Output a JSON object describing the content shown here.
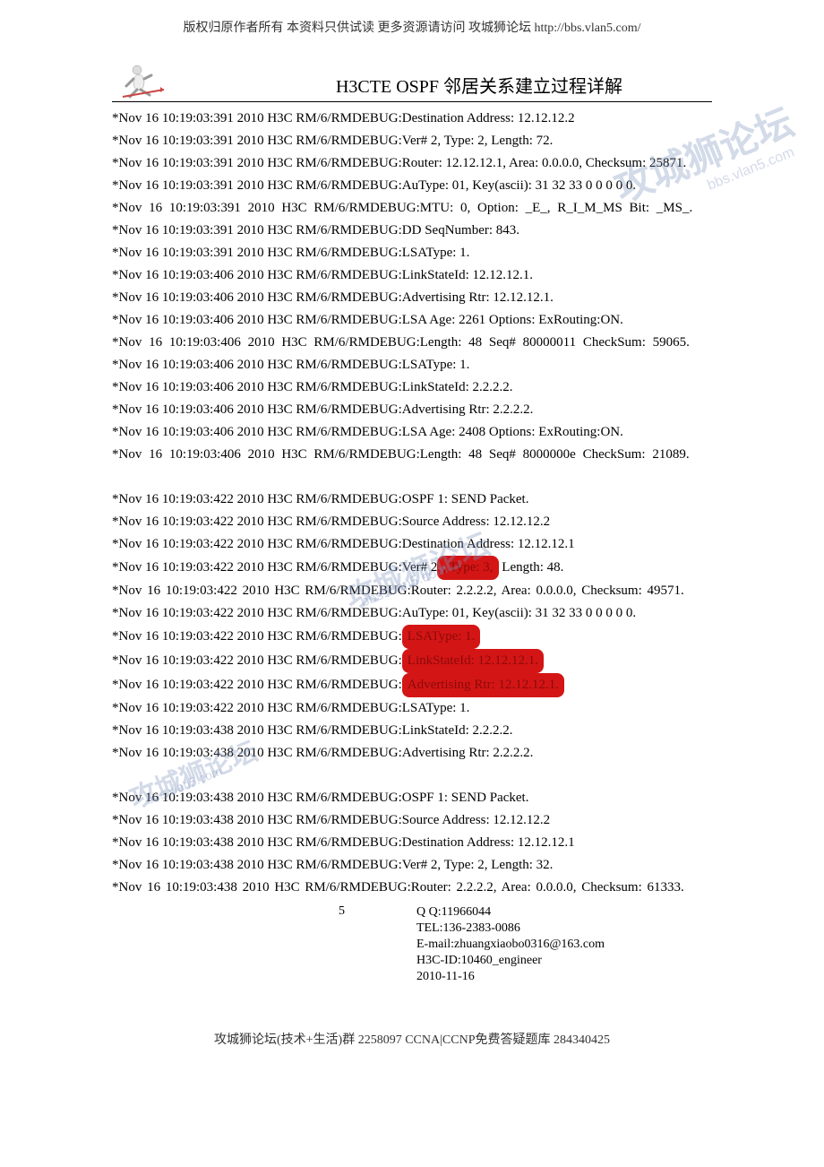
{
  "header": {
    "copyright": "版权归原作者所有 本资料只供试读 更多资源请访问 攻城狮论坛 http://bbs.vlan5.com/"
  },
  "title": "H3CTE OSPF 邻居关系建立过程详解",
  "watermark": {
    "main": "攻城狮论坛",
    "url": "bbs.vlan5.com"
  },
  "lines": [
    {
      "t": "*Nov 16 10:19:03:391 2010 H3C RM/6/RMDEBUG:Destination Address: 12.12.12.2"
    },
    {
      "t": "*Nov 16 10:19:03:391 2010 H3C RM/6/RMDEBUG:Ver# 2, Type: 2, Length: 72."
    },
    {
      "t": "*Nov 16 10:19:03:391 2010 H3C RM/6/RMDEBUG:Router: 12.12.12.1, Area: 0.0.0.0, Checksum: 25871."
    },
    {
      "t": "*Nov 16 10:19:03:391 2010 H3C RM/6/RMDEBUG:AuType: 01, Key(ascii): 31 32 33 0 0 0 0 0."
    },
    {
      "t": "*Nov 16 10:19:03:391 2010 H3C RM/6/RMDEBUG:MTU: 0, Option: _E_, R_I_M_MS Bit: _MS_.",
      "cls": "wide"
    },
    {
      "t": "*Nov 16 10:19:03:391 2010 H3C RM/6/RMDEBUG:DD SeqNumber: 843."
    },
    {
      "t": "*Nov 16 10:19:03:391 2010 H3C RM/6/RMDEBUG:LSAType: 1."
    },
    {
      "t": "*Nov 16 10:19:03:406 2010 H3C RM/6/RMDEBUG:LinkStateId: 12.12.12.1."
    },
    {
      "t": "*Nov 16 10:19:03:406 2010 H3C RM/6/RMDEBUG:Advertising Rtr: 12.12.12.1."
    },
    {
      "t": "*Nov 16 10:19:03:406 2010 H3C RM/6/RMDEBUG:LSA Age: 2261 Options: ExRouting:ON."
    },
    {
      "t": "*Nov 16 10:19:03:406 2010 H3C RM/6/RMDEBUG:Length: 48 Seq# 80000011 CheckSum: 59065.",
      "cls": "wide"
    },
    {
      "t": "*Nov 16 10:19:03:406 2010 H3C RM/6/RMDEBUG:LSAType: 1."
    },
    {
      "t": "*Nov 16 10:19:03:406 2010 H3C RM/6/RMDEBUG:LinkStateId: 2.2.2.2."
    },
    {
      "t": "*Nov 16 10:19:03:406 2010 H3C RM/6/RMDEBUG:Advertising Rtr: 2.2.2.2."
    },
    {
      "t": "*Nov 16 10:19:03:406 2010 H3C RM/6/RMDEBUG:LSA Age: 2408 Options: ExRouting:ON."
    },
    {
      "t": "*Nov 16 10:19:03:406 2010 H3C RM/6/RMDEBUG:Length: 48 Seq# 8000000e CheckSum: 21089.",
      "cls": "wide"
    },
    {
      "blank": true
    },
    {
      "t": "*Nov 16 10:19:03:422 2010 H3C RM/6/RMDEBUG:OSPF 1: SEND Packet."
    },
    {
      "t": "*Nov 16 10:19:03:422 2010 H3C RM/6/RMDEBUG:Source Address: 12.12.12.2"
    },
    {
      "t": "*Nov 16 10:19:03:422 2010 H3C RM/6/RMDEBUG:Destination Address: 12.12.12.1"
    },
    {
      "pre": "*Nov 16 10:19:03:422 2010 H3C RM/6/RMDEBUG:Ver# 2",
      "hl": ", Type: 3,",
      "post": " Length: 48."
    },
    {
      "t": "*Nov 16 10:19:03:422 2010 H3C RM/6/RMDEBUG:Router: 2.2.2.2, Area: 0.0.0.0, Checksum: 49571.",
      "cls": "spaced"
    },
    {
      "t": "*Nov 16 10:19:03:422 2010 H3C RM/6/RMDEBUG:AuType: 01, Key(ascii): 31 32 33 0 0 0 0 0."
    },
    {
      "pre": "*Nov 16 10:19:03:422 2010 H3C RM/6/RMDEBUG:",
      "hl": "LSAType: 1.",
      "post": ""
    },
    {
      "pre": "*Nov 16 10:19:03:422 2010 H3C RM/6/RMDEBUG:",
      "hl": "LinkStateId: 12.12.12.1.",
      "post": ""
    },
    {
      "pre": "*Nov 16 10:19:03:422 2010 H3C RM/6/RMDEBUG:",
      "hl": "Advertising Rtr: 12.12.12.1.",
      "post": ""
    },
    {
      "t": "*Nov 16 10:19:03:422 2010 H3C RM/6/RMDEBUG:LSAType: 1."
    },
    {
      "t": "*Nov 16 10:19:03:438 2010 H3C RM/6/RMDEBUG:LinkStateId: 2.2.2.2."
    },
    {
      "t": "*Nov 16 10:19:03:438 2010 H3C RM/6/RMDEBUG:Advertising Rtr: 2.2.2.2."
    },
    {
      "blank": true
    },
    {
      "t": "*Nov 16 10:19:03:438 2010 H3C RM/6/RMDEBUG:OSPF 1: SEND Packet."
    },
    {
      "t": "*Nov 16 10:19:03:438 2010 H3C RM/6/RMDEBUG:Source Address: 12.12.12.2"
    },
    {
      "t": "*Nov 16 10:19:03:438 2010 H3C RM/6/RMDEBUG:Destination Address: 12.12.12.1"
    },
    {
      "t": "*Nov 16 10:19:03:438 2010 H3C RM/6/RMDEBUG:Ver# 2, Type: 2, Length: 32."
    },
    {
      "t": "*Nov 16 10:19:03:438 2010 H3C RM/6/RMDEBUG:Router: 2.2.2.2, Area: 0.0.0.0, Checksum: 61333.",
      "cls": "spaced"
    }
  ],
  "footer": {
    "page_num": "5",
    "qq": "Q Q:11966044",
    "tel": "TEL:136-2383-0086",
    "email": "E-mail:zhuangxiaobo0316@163.com",
    "h3cid": "H3C-ID:10460_engineer",
    "date": "2010-11-16"
  },
  "bottom": "攻城狮论坛(技术+生活)群 2258097 CCNA|CCNP免费答疑题库 284340425",
  "colors": {
    "highlight_bg": "#d41515",
    "highlight_fg": "#8b0a0a",
    "text": "#000000",
    "watermark": "rgba(130,150,190,0.35)"
  }
}
